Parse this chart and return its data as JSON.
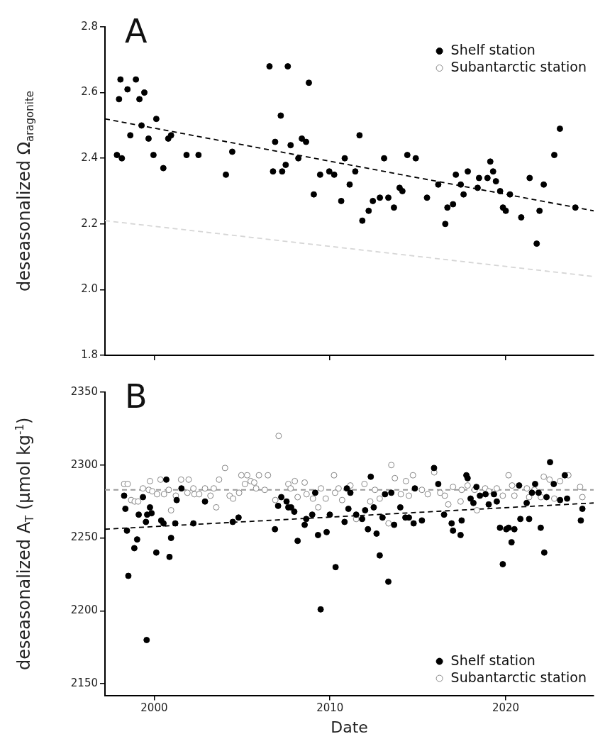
{
  "chart_data": [
    {
      "type": "scatter",
      "title": "A",
      "ylabel": "deseasonalized Ω$_{aragonite}$",
      "xlim": [
        1997.2,
        2025
      ],
      "xticks": [
        2000,
        2010,
        2020
      ],
      "ylim": [
        1.8,
        2.8
      ],
      "yticks": [
        1.8,
        {
          "value": 2,
          "label": "2.0"
        },
        2.2,
        2.4,
        2.6,
        2.8
      ],
      "tick_labels": "y",
      "legend": "top right",
      "marker": "circle",
      "series": [
        {
          "name": "Shelf station",
          "type": "scatter",
          "color": "#000000",
          "x": [
            1997.88,
            1998.0,
            1998.08,
            1998.16,
            1998.48,
            1998.64,
            1998.96,
            1999.16,
            1999.28,
            1999.44,
            1999.68,
            1999.96,
            2000.12,
            2000.52,
            2000.8,
            2000.96,
            2001.84,
            2002.52,
            2004.08,
            2004.44,
            2006.56,
            2006.76,
            2006.88,
            2007.2,
            2007.28,
            2007.48,
            2007.6,
            2007.76,
            2008.2,
            2008.4,
            2008.64,
            2008.8,
            2009.08,
            2009.44,
            2009.96,
            2010.24,
            2010.64,
            2010.84,
            2011.12,
            2011.44,
            2011.68,
            2011.84,
            2012.2,
            2012.44,
            2012.84,
            2013.08,
            2013.32,
            2013.64,
            2013.96,
            2014.12,
            2014.4,
            2014.88,
            2015.52,
            2016.16,
            2016.56,
            2016.68,
            2017.0,
            2017.16,
            2017.44,
            2017.6,
            2017.84,
            2018.4,
            2018.48,
            2018.96,
            2019.12,
            2019.28,
            2019.44,
            2019.68,
            2019.84,
            2020.0,
            2020.24,
            2020.88,
            2021.36,
            2021.76,
            2021.92,
            2022.16,
            2022.76,
            2023.08,
            2023.96
          ],
          "values": [
            2.41,
            2.58,
            2.64,
            2.4,
            2.61,
            2.47,
            2.64,
            2.58,
            2.5,
            2.6,
            2.46,
            2.41,
            2.52,
            2.37,
            2.46,
            2.47,
            2.41,
            2.41,
            2.35,
            2.42,
            2.68,
            2.36,
            2.45,
            2.53,
            2.36,
            2.38,
            2.68,
            2.44,
            2.4,
            2.46,
            2.45,
            2.63,
            2.29,
            2.35,
            2.36,
            2.35,
            2.27,
            2.4,
            2.32,
            2.36,
            2.47,
            2.21,
            2.24,
            2.27,
            2.28,
            2.4,
            2.28,
            2.25,
            2.31,
            2.3,
            2.41,
            2.4,
            2.28,
            2.32,
            2.2,
            2.25,
            2.26,
            2.35,
            2.32,
            2.29,
            2.36,
            2.31,
            2.34,
            2.34,
            2.39,
            2.36,
            2.33,
            2.3,
            2.25,
            2.24,
            2.29,
            2.22,
            2.34,
            2.14,
            2.24,
            2.32,
            2.41,
            2.49,
            2.25
          ]
        },
        {
          "name": "Subantarctic station",
          "type": "scatter",
          "color": "#888888"
        },
        {
          "type": "line",
          "color": "#000000",
          "marker": "none",
          "line_style": "dashed",
          "x": [
            1997.2,
            2025
          ],
          "values": [
            2.52,
            2.24
          ]
        },
        {
          "type": "line",
          "color": "#d6d6d6",
          "marker": "none",
          "line_style": "dashed",
          "x": [
            1997.2,
            2025
          ],
          "values": [
            2.21,
            2.04
          ]
        }
      ]
    },
    {
      "type": "scatter",
      "title": "B",
      "xlabel": "Date",
      "ylabel": "deseasonalized A$_{T}$ (µmol kg$^{-1}$)",
      "xlim": [
        1997.2,
        2025
      ],
      "xticks": [
        2000,
        2010,
        2020
      ],
      "ylim": [
        2142,
        2350
      ],
      "yticks": [
        2150,
        2200,
        2250,
        2300,
        2350
      ],
      "legend": "bottom right",
      "marker": "circle",
      "series": [
        {
          "name": "Shelf station",
          "type": "scatter",
          "color": "#000000",
          "x": [
            1998.29,
            1998.36,
            1998.45,
            1998.53,
            1998.87,
            1999.03,
            1999.12,
            1999.36,
            1999.53,
            1999.57,
            1999.6,
            1999.76,
            1999.85,
            2000.12,
            2000.4,
            2000.53,
            2000.69,
            2000.87,
            2000.96,
            2001.2,
            2001.28,
            2001.55,
            2002.23,
            2002.89,
            2004.47,
            2004.8,
            2006.87,
            2007.05,
            2007.23,
            2007.53,
            2007.63,
            2007.79,
            2007.97,
            2008.16,
            2008.56,
            2008.65,
            2008.99,
            2009.16,
            2009.32,
            2009.47,
            2009.81,
            2009.99,
            2010.32,
            2010.83,
            2010.96,
            2011.05,
            2011.16,
            2011.49,
            2011.83,
            2012.0,
            2012.16,
            2012.32,
            2012.49,
            2012.65,
            2012.83,
            2012.99,
            2013.13,
            2013.32,
            2013.49,
            2013.65,
            2014.0,
            2014.29,
            2014.49,
            2014.76,
            2014.83,
            2015.23,
            2015.92,
            2016.16,
            2016.49,
            2016.92,
            2017.0,
            2017.43,
            2017.49,
            2017.76,
            2017.83,
            2018.0,
            2018.16,
            2018.33,
            2018.53,
            2018.85,
            2019.03,
            2019.33,
            2019.49,
            2019.67,
            2019.83,
            2020.03,
            2020.16,
            2020.33,
            2020.49,
            2020.76,
            2020.83,
            2021.19,
            2021.33,
            2021.49,
            2021.67,
            2021.87,
            2021.99,
            2022.19,
            2022.32,
            2022.52,
            2022.73,
            2023.09,
            2023.36,
            2023.49,
            2024.27,
            2024.36
          ],
          "values": [
            2279,
            2270,
            2255,
            2224,
            2243,
            2249,
            2266,
            2278,
            2261,
            2180,
            2266,
            2271,
            2267,
            2240,
            2262,
            2260,
            2290,
            2237,
            2250,
            2260,
            2276,
            2284,
            2260,
            2275,
            2261,
            2264,
            2256,
            2272,
            2278,
            2275,
            2271,
            2271,
            2268,
            2248,
            2259,
            2263,
            2266,
            2281,
            2252,
            2201,
            2254,
            2266,
            2230,
            2261,
            2284,
            2270,
            2281,
            2266,
            2263,
            2269,
            2256,
            2292,
            2271,
            2253,
            2238,
            2264,
            2280,
            2220,
            2281,
            2259,
            2271,
            2264,
            2264,
            2260,
            2284,
            2262,
            2298,
            2287,
            2266,
            2260,
            2255,
            2252,
            2262,
            2293,
            2291,
            2277,
            2274,
            2285,
            2279,
            2280,
            2273,
            2280,
            2275,
            2257,
            2232,
            2256,
            2257,
            2247,
            2256,
            2286,
            2263,
            2274,
            2263,
            2281,
            2287,
            2281,
            2257,
            2240,
            2278,
            2302,
            2287,
            2276,
            2293,
            2277,
            2262,
            2270
          ]
        },
        {
          "name": "Subantarctic station",
          "type": "scatter",
          "color": "#888888",
          "x": [
            1998.29,
            1998.49,
            1998.69,
            1998.89,
            1999.09,
            1999.36,
            1999.69,
            1999.76,
            1999.89,
            2000.16,
            2000.36,
            2000.56,
            2000.83,
            2000.96,
            2001.23,
            2001.53,
            2001.89,
            2001.96,
            2002.23,
            2002.29,
            2002.56,
            2002.89,
            2003.2,
            2003.39,
            2003.53,
            2003.69,
            2004.03,
            2004.29,
            2004.49,
            2004.83,
            2004.96,
            2005.16,
            2005.29,
            2005.49,
            2005.69,
            2005.8,
            2005.96,
            2006.29,
            2006.47,
            2006.89,
            2007.08,
            2007.63,
            2007.76,
            2008.0,
            2008.16,
            2008.56,
            2008.67,
            2009.03,
            2009.33,
            2009.49,
            2009.76,
            2010.23,
            2010.29,
            2010.49,
            2010.69,
            2011.16,
            2011.49,
            2011.96,
            2012.29,
            2012.56,
            2012.83,
            2013.33,
            2013.49,
            2013.69,
            2014.03,
            2014.32,
            2014.49,
            2014.72,
            2015.23,
            2015.56,
            2015.93,
            2016.27,
            2016.53,
            2016.73,
            2017.0,
            2017.43,
            2017.49,
            2017.83,
            2018.23,
            2018.36,
            2018.83,
            2019.03,
            2019.49,
            2019.83,
            2020.16,
            2020.36,
            2020.49,
            2021.2,
            2021.33,
            2021.63,
            2022.0,
            2022.16,
            2022.49,
            2022.76,
            2023.09,
            2023.56,
            2024.23,
            2024.36
          ],
          "values": [
            2287,
            2287,
            2276,
            2275,
            2275,
            2284,
            2283,
            2289,
            2282,
            2280,
            2290,
            2280,
            2283,
            2269,
            2279,
            2290,
            2281,
            2290,
            2284,
            2280,
            2280,
            2284,
            2279,
            2284,
            2271,
            2290,
            2298,
            2279,
            2277,
            2281,
            2293,
            2287,
            2293,
            2289,
            2288,
            2284,
            2293,
            2283,
            2293,
            2276,
            2320,
            2287,
            2284,
            2289,
            2278,
            2288,
            2280,
            2277,
            2271,
            2284,
            2277,
            2293,
            2281,
            2284,
            2276,
            2286,
            2263,
            2287,
            2275,
            2283,
            2277,
            2260,
            2300,
            2291,
            2280,
            2289,
            2279,
            2293,
            2283,
            2280,
            2295,
            2281,
            2279,
            2273,
            2285,
            2275,
            2283,
            2286,
            2283,
            2269,
            2284,
            2282,
            2284,
            2279,
            2293,
            2286,
            2279,
            2284,
            2278,
            2283,
            2278,
            2292,
            2290,
            2277,
            2289,
            2293,
            2285,
            2278
          ]
        },
        {
          "type": "line",
          "color": "#000000",
          "marker": "none",
          "line_style": "dashed",
          "x": [
            1997.2,
            2025
          ],
          "values": [
            2256,
            2274
          ]
        },
        {
          "type": "line",
          "color": "#999999",
          "marker": "none",
          "line_style": "dashed",
          "x": [
            1997.2,
            2025
          ],
          "values": [
            2283,
            2283
          ]
        }
      ]
    }
  ]
}
